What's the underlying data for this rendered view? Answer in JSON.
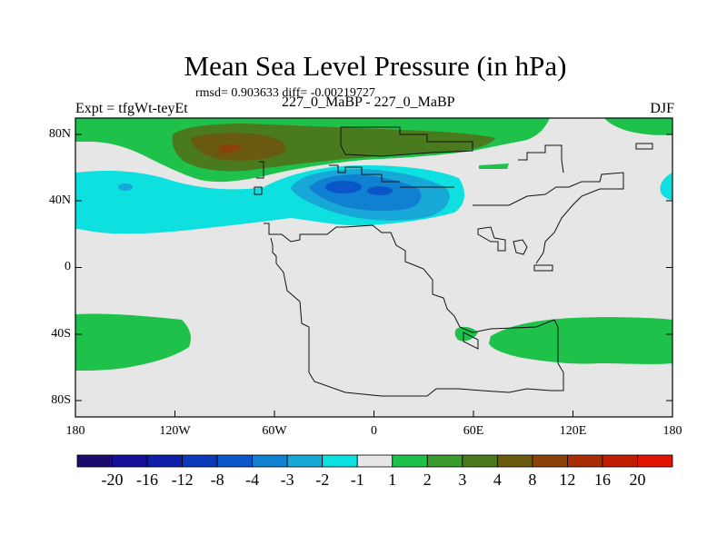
{
  "chart_data": {
    "type": "heatmap",
    "title": "Mean Sea Level Pressure (in hPa)",
    "stats": "rmsd= 0.903633 diff= -0.00219727",
    "left_label": "Expt = tfgWt-teyEt",
    "center_label": "227_0_MaBP - 227_0_MaBP",
    "right_label": "DJF",
    "x_axis": {
      "range": [
        -180,
        180
      ],
      "ticks": [
        "180",
        "120W",
        "60W",
        "0",
        "60E",
        "120E",
        "180"
      ]
    },
    "y_axis": {
      "range": [
        -90,
        90
      ],
      "ticks": [
        "80N",
        "40N",
        "0",
        "40S",
        "80S"
      ]
    },
    "colorbar": {
      "labels": [
        "-20",
        "-16",
        "-12",
        "-8",
        "-4",
        "-3",
        "-2",
        "-1",
        "1",
        "2",
        "3",
        "4",
        "8",
        "12",
        "16",
        "20"
      ],
      "colors": [
        "#1c0a6e",
        "#140e99",
        "#0c1ea8",
        "#0a3ab8",
        "#0a56c8",
        "#1080d0",
        "#18a8d8",
        "#0ee0e0",
        "#e6e6e6",
        "#1ec24a",
        "#3a9a2c",
        "#4a7a1e",
        "#6a5a10",
        "#8a4208",
        "#a82c04",
        "#c01c02",
        "#e01400"
      ]
    },
    "regions": [
      {
        "name": "Arctic positive anomaly",
        "level": "2"
      },
      {
        "name": "Northern high-pressure core",
        "level": "4 to 8"
      },
      {
        "name": "Mid-latitude North Pacific/Atlantic band",
        "level": "-1"
      },
      {
        "name": "North Atlantic/Europe low",
        "level": "-2 to -3"
      },
      {
        "name": "Southern Ocean west band",
        "level": "2"
      },
      {
        "name": "Southern Ocean east band",
        "level": "2"
      }
    ]
  }
}
